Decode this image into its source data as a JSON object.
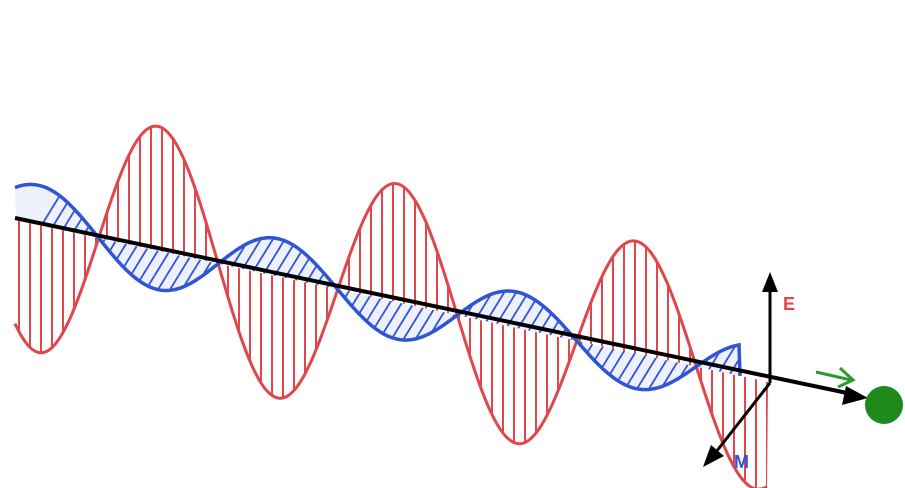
{
  "diagram": {
    "labels": {
      "e_field": "E",
      "m_field": "M"
    },
    "colors": {
      "electric_wave": "#e0474c",
      "magnetic_wave": "#2f55d4",
      "propagation_axis": "#000000",
      "e_label": "#e0474c",
      "m_label": "#2f55d4",
      "direction_arrow": "#2e9a2e",
      "photon_dot": "#1e8a1e",
      "background": "#ffffff"
    },
    "icons": {
      "direction": "arrow-right-icon",
      "photon": "circle-icon"
    },
    "wave": {
      "cycles": 3
    }
  }
}
